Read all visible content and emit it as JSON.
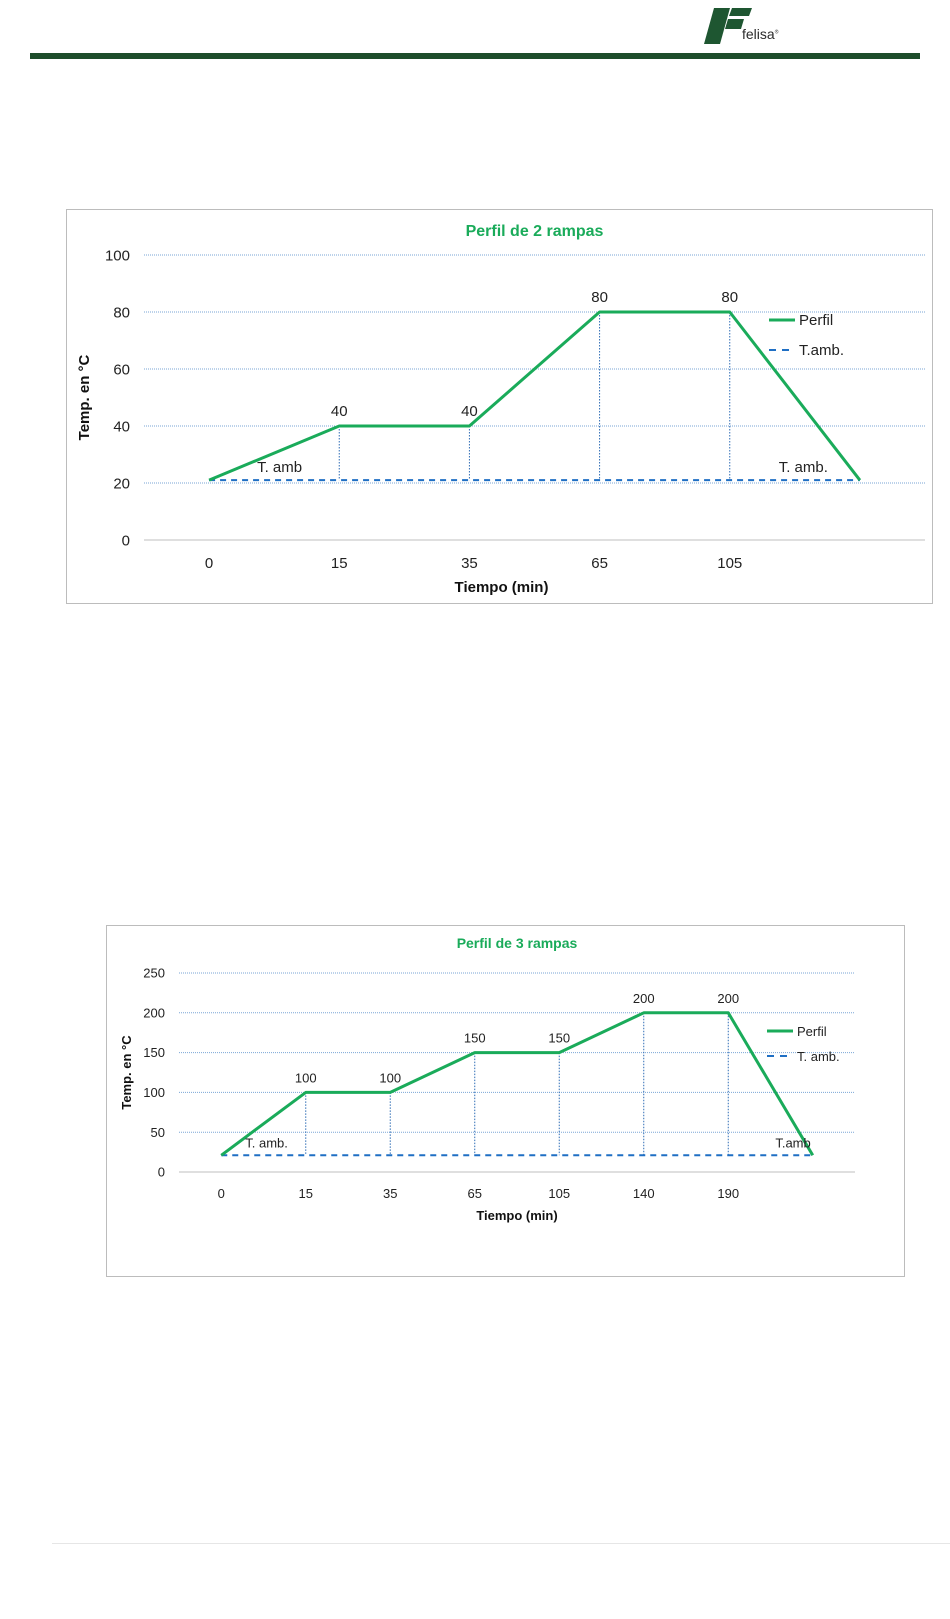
{
  "brand": {
    "name": "felisa",
    "mark": "®"
  },
  "chart_data": [
    {
      "type": "line",
      "title": "Perfil de 2 rampas",
      "xlabel": "Tiempo (min)",
      "ylabel": "Temp. en °C",
      "categories": [
        "0",
        "15",
        "35",
        "65",
        "105",
        ""
      ],
      "ylim": [
        0,
        100
      ],
      "yticks": [
        0,
        20,
        40,
        60,
        80,
        100
      ],
      "grid": true,
      "legend_position": "right",
      "series": [
        {
          "name": "Perfil",
          "style": "solid",
          "color": "#1aab5a",
          "values": [
            21,
            40,
            40,
            80,
            80,
            21
          ]
        },
        {
          "name": "T.amb.",
          "style": "dashed",
          "color": "#1f6fc4",
          "values": [
            21,
            21,
            21,
            21,
            21,
            21
          ]
        }
      ],
      "data_labels": [
        "",
        "40",
        "40",
        "80",
        "80",
        ""
      ],
      "annotations": [
        {
          "text": "T. amb",
          "at": 0
        },
        {
          "text": "T. amb.",
          "at": 5
        }
      ]
    },
    {
      "type": "line",
      "title": "Perfil de 3 rampas",
      "xlabel": "Tiempo (min)",
      "ylabel": "Temp. en °C",
      "categories": [
        "0",
        "15",
        "35",
        "65",
        "105",
        "140",
        "190",
        ""
      ],
      "ylim": [
        0,
        250
      ],
      "yticks": [
        0,
        50,
        100,
        150,
        200,
        250
      ],
      "grid": true,
      "legend_position": "right",
      "series": [
        {
          "name": "Perfil",
          "style": "solid",
          "color": "#1aab5a",
          "values": [
            21,
            100,
            100,
            150,
            150,
            200,
            200,
            21
          ]
        },
        {
          "name": "T. amb.",
          "style": "dashed",
          "color": "#1f6fc4",
          "values": [
            21,
            21,
            21,
            21,
            21,
            21,
            21,
            21
          ]
        }
      ],
      "data_labels": [
        "",
        "100",
        "100",
        "150",
        "150",
        "200",
        "200",
        ""
      ],
      "annotations": [
        {
          "text": "T. amb.",
          "at": 0
        },
        {
          "text": "T.amb",
          "at": 7
        }
      ]
    }
  ]
}
